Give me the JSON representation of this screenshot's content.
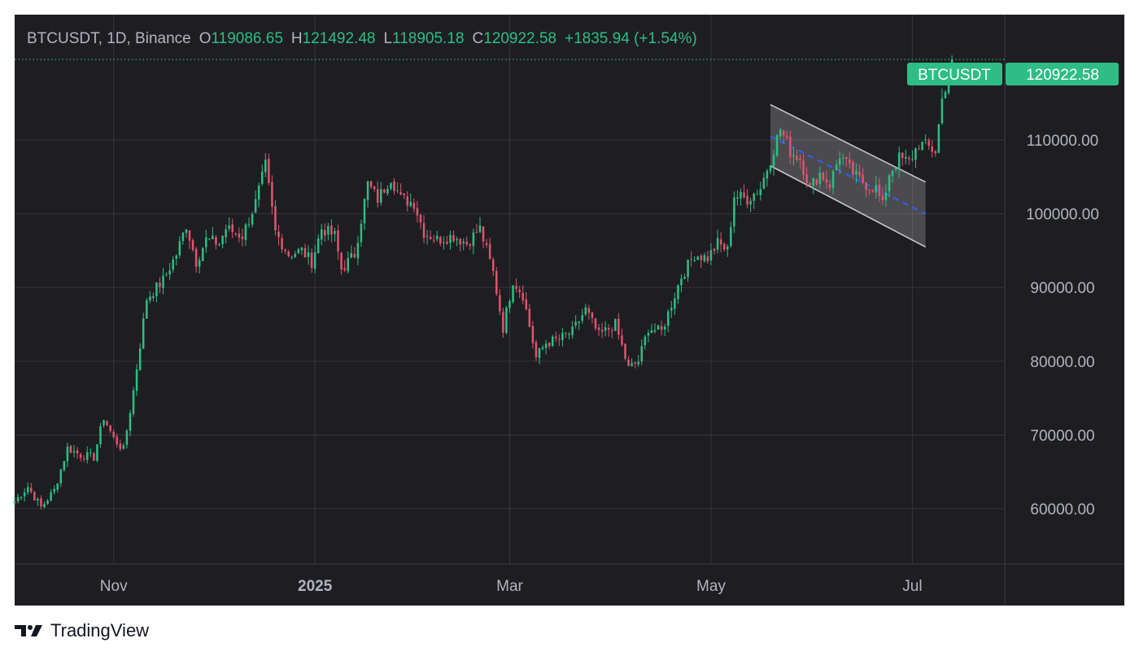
{
  "header": {
    "symbol": "BTCUSDT",
    "interval": "1D",
    "exchange": "Binance",
    "open_label": "O",
    "open": "119086.65",
    "high_label": "H",
    "high": "121492.48",
    "low_label": "L",
    "low": "118905.18",
    "close_label": "C",
    "close": "120922.58",
    "change": "+1835.94 (+1.54%)"
  },
  "price_tag": {
    "symbol": "BTCUSDT",
    "price": "120922.58"
  },
  "footer": {
    "brand": "TradingView"
  },
  "colors": {
    "background": "#1e1e22",
    "up": "#2ebd85",
    "down": "#e0546e",
    "grid": "#35353b",
    "channel_fill": "#b7b7bb",
    "channel_mid": "#2962ff"
  },
  "chart_data": {
    "type": "candlestick",
    "title": "BTCUSDT, 1D, Binance",
    "x_tick_labels": [
      "Nov",
      "2025",
      "Mar",
      "May",
      "Jul"
    ],
    "x_ticks": [
      "2024-11-01",
      "2025-01-01",
      "2025-03-01",
      "2025-05-01",
      "2025-07-01"
    ],
    "y_tick_labels": [
      "60000.00",
      "70000.00",
      "80000.00",
      "90000.00",
      "100000.00",
      "110000.00"
    ],
    "ylim": [
      52500,
      127000
    ],
    "xlim": [
      "2024-10-02",
      "2025-07-29"
    ],
    "grid": true,
    "last_price": 120922.58,
    "anchors": [
      [
        "2024-10-02",
        61000
      ],
      [
        "2024-10-06",
        63000
      ],
      [
        "2024-10-10",
        60200
      ],
      [
        "2024-10-14",
        62500
      ],
      [
        "2024-10-18",
        68200
      ],
      [
        "2024-10-22",
        67300
      ],
      [
        "2024-10-26",
        67000
      ],
      [
        "2024-10-29",
        72400
      ],
      [
        "2024-11-01",
        69500
      ],
      [
        "2024-11-04",
        68000
      ],
      [
        "2024-11-07",
        76000
      ],
      [
        "2024-11-11",
        88500
      ],
      [
        "2024-11-13",
        89500
      ],
      [
        "2024-11-16",
        91000
      ],
      [
        "2024-11-20",
        94500
      ],
      [
        "2024-11-23",
        98500
      ],
      [
        "2024-11-26",
        93500
      ],
      [
        "2024-11-29",
        96500
      ],
      [
        "2024-12-03",
        96000
      ],
      [
        "2024-12-05",
        98000
      ],
      [
        "2024-12-10",
        97000
      ],
      [
        "2024-12-14",
        101500
      ],
      [
        "2024-12-17",
        106500
      ],
      [
        "2024-12-20",
        97500
      ],
      [
        "2024-12-24",
        94500
      ],
      [
        "2024-12-28",
        95000
      ],
      [
        "2024-12-31",
        93500
      ],
      [
        "2025-01-03",
        98000
      ],
      [
        "2025-01-07",
        97000
      ],
      [
        "2025-01-09",
        92500
      ],
      [
        "2025-01-13",
        94500
      ],
      [
        "2025-01-17",
        104000
      ],
      [
        "2025-01-20",
        102000
      ],
      [
        "2025-01-24",
        105000
      ],
      [
        "2025-01-27",
        102000
      ],
      [
        "2025-01-31",
        101500
      ],
      [
        "2025-02-03",
        97500
      ],
      [
        "2025-02-07",
        96500
      ],
      [
        "2025-02-12",
        97000
      ],
      [
        "2025-02-16",
        96000
      ],
      [
        "2025-02-20",
        98000
      ],
      [
        "2025-02-24",
        92000
      ],
      [
        "2025-02-27",
        84500
      ],
      [
        "2025-03-02",
        91000
      ],
      [
        "2025-03-05",
        89000
      ],
      [
        "2025-03-09",
        80500
      ],
      [
        "2025-03-12",
        82500
      ],
      [
        "2025-03-16",
        83000
      ],
      [
        "2025-03-20",
        84000
      ],
      [
        "2025-03-24",
        87000
      ],
      [
        "2025-03-28",
        83500
      ],
      [
        "2025-04-02",
        85000
      ],
      [
        "2025-04-06",
        79000
      ],
      [
        "2025-04-09",
        80000
      ],
      [
        "2025-04-12",
        84500
      ],
      [
        "2025-04-16",
        84000
      ],
      [
        "2025-04-22",
        91500
      ],
      [
        "2025-04-26",
        94500
      ],
      [
        "2025-04-30",
        94000
      ],
      [
        "2025-05-03",
        96000
      ],
      [
        "2025-05-06",
        95000
      ],
      [
        "2025-05-08",
        102500
      ],
      [
        "2025-05-12",
        102000
      ],
      [
        "2025-05-16",
        103500
      ],
      [
        "2025-05-22",
        111500
      ],
      [
        "2025-05-25",
        108500
      ],
      [
        "2025-05-28",
        107500
      ],
      [
        "2025-05-31",
        103500
      ],
      [
        "2025-06-03",
        105500
      ],
      [
        "2025-06-06",
        104000
      ],
      [
        "2025-06-09",
        108000
      ],
      [
        "2025-06-12",
        106000
      ],
      [
        "2025-06-14",
        105000
      ],
      [
        "2025-06-17",
        104000
      ],
      [
        "2025-06-20",
        103500
      ],
      [
        "2025-06-22",
        101000
      ],
      [
        "2025-06-24",
        105500
      ],
      [
        "2025-06-27",
        107500
      ],
      [
        "2025-06-30",
        107000
      ],
      [
        "2025-07-03",
        109500
      ],
      [
        "2025-07-06",
        109000
      ],
      [
        "2025-07-08",
        108500
      ],
      [
        "2025-07-10",
        115500
      ],
      [
        "2025-07-13",
        120922.58
      ]
    ],
    "channel": {
      "upper": [
        [
          "2025-05-19",
          114800
        ],
        [
          "2025-07-05",
          104300
        ]
      ],
      "lower": [
        [
          "2025-05-19",
          106500
        ],
        [
          "2025-07-05",
          95500
        ]
      ],
      "mid": [
        [
          "2025-05-19",
          110500
        ],
        [
          "2025-07-05",
          100000
        ]
      ]
    }
  }
}
